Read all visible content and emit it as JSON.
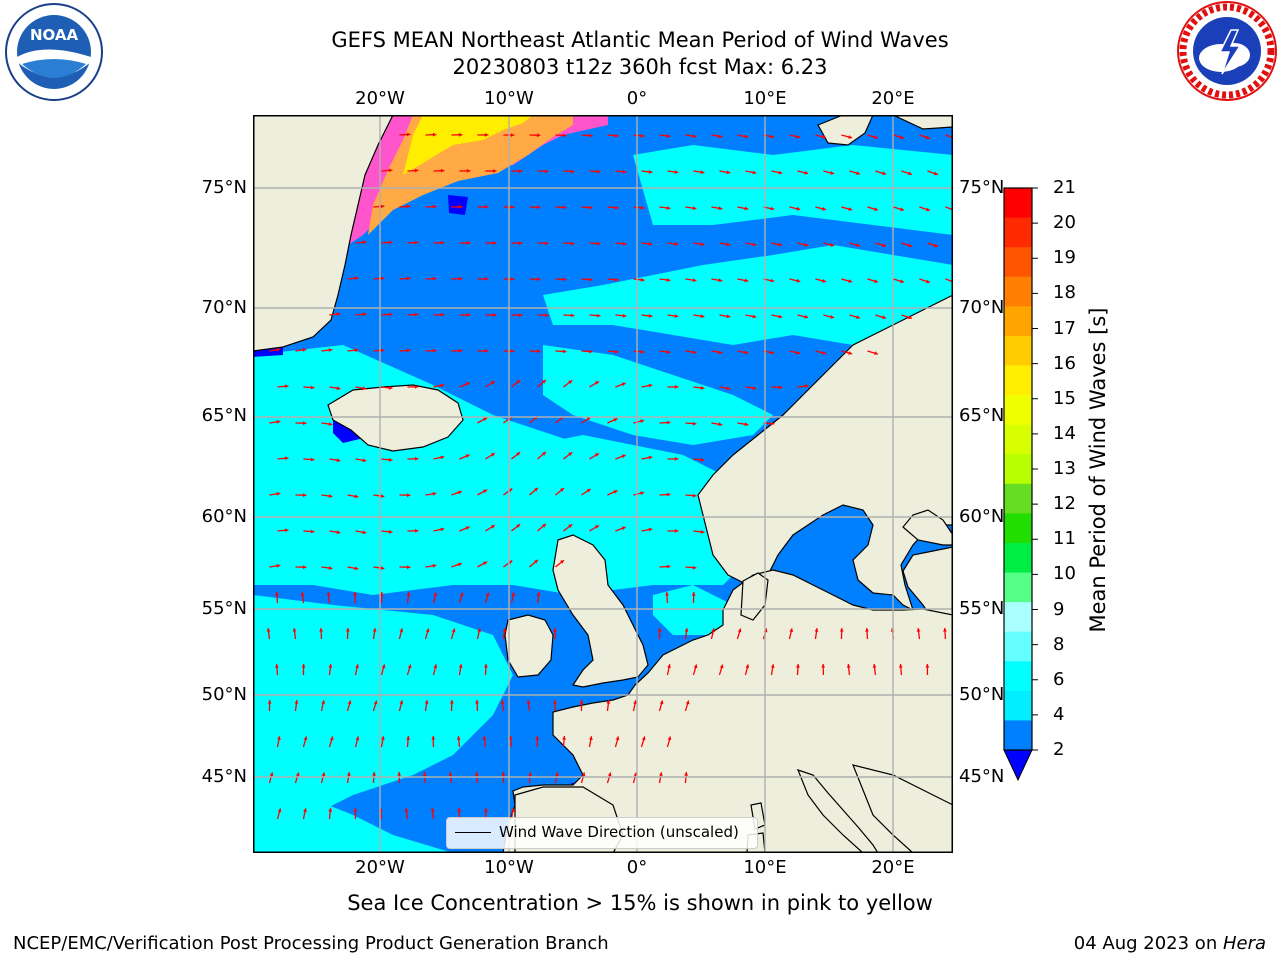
{
  "title": {
    "line1": "GEFS MEAN Northeast Atlantic Mean Period of Wind Waves",
    "line2": "20230803 t12z 360h fcst   Max: 6.23"
  },
  "logos": {
    "noaa": {
      "text": "NOAA",
      "ring_text": "NATIONAL OCEANIC AND ATMOSPHERIC ADMINISTRATION · U.S. DEPARTMENT OF COMMERCE",
      "icon": "noaa-logo"
    },
    "nws": {
      "ring_text": "NATIONAL WEATHER SERVICE",
      "icon": "nws-logo"
    }
  },
  "axes": {
    "lon_labels": [
      "20°W",
      "10°W",
      "0°",
      "10°E",
      "20°E"
    ],
    "lat_labels": [
      "75°N",
      "70°N",
      "65°N",
      "60°N",
      "55°N",
      "50°N",
      "45°N"
    ]
  },
  "legend": {
    "label": "Wind Wave Direction (unscaled)"
  },
  "colorbar": {
    "label": "Mean Period of Wind Waves [s]",
    "ticks": [
      "21",
      "20",
      "19",
      "18",
      "17",
      "16",
      "15",
      "14",
      "13",
      "12",
      "11",
      "10",
      "9",
      "8",
      "6",
      "4",
      "2"
    ],
    "colors_top_to_bottom": [
      "#ff0000",
      "#ff2a00",
      "#ff5500",
      "#ff7f00",
      "#ffa500",
      "#ffcc00",
      "#ffee00",
      "#f0ff00",
      "#d8ff00",
      "#b8ff00",
      "#66dd22",
      "#22dd00",
      "#00ee44",
      "#55ff88",
      "#aaffff",
      "#66ffff",
      "#00ffff",
      "#00eeff",
      "#0080ff"
    ],
    "under_color": "#0000ff"
  },
  "map_colors": {
    "land": "#eeeedd",
    "ocean_low": "#0080ff",
    "ocean_mid": "#00ffff",
    "ocean_min": "#0000ff",
    "ice_pink": "#ff55cc",
    "ice_orange": "#ffaa44",
    "ice_yellow": "#ffee00",
    "arrow": "#ff0000",
    "grid": "#b0b0b0"
  },
  "caption": "Sea Ice Concentration > 15% is shown in pink to yellow",
  "footer": {
    "left": "NCEP/EMC/Verification Post Processing Product Generation Branch",
    "right_prefix": "04 Aug 2023 on ",
    "right_machine": "Hera"
  }
}
